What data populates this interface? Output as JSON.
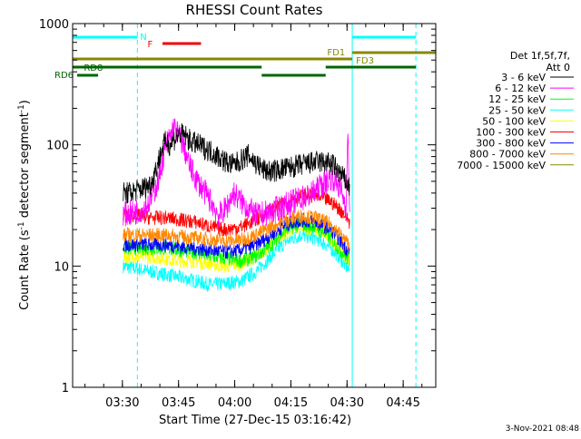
{
  "chart_data": {
    "type": "line",
    "title": "RHESSI Count Rates",
    "xlabel": "Start Time (27-Dec-15 03:16:42)",
    "ylabel_parts": [
      "Count Rate (s",
      "-1",
      " detector segment",
      "-1",
      ")"
    ],
    "x_unit": "minutes after 03:16:42",
    "xlim": [
      0,
      97
    ],
    "ylim": [
      1,
      1000
    ],
    "yscale": "log",
    "x_ticks": [
      {
        "x": 13.3,
        "label": "03:30"
      },
      {
        "x": 28.3,
        "label": "03:45"
      },
      {
        "x": 43.3,
        "label": "04:00"
      },
      {
        "x": 58.3,
        "label": "04:15"
      },
      {
        "x": 73.3,
        "label": "04:30"
      },
      {
        "x": 88.3,
        "label": "04:45"
      }
    ],
    "y_ticks": [
      {
        "y": 1,
        "label": "1"
      },
      {
        "y": 10,
        "label": "10"
      },
      {
        "y": 100,
        "label": "100"
      },
      {
        "y": 1000,
        "label": "1000"
      }
    ],
    "legend": {
      "header": [
        "Det 1f,5f,7f,",
        "Att 0"
      ],
      "placement": "right"
    },
    "series": [
      {
        "name": "3 - 6 keV",
        "color": "#000000",
        "x": [
          13.5,
          15,
          17,
          19,
          21,
          22,
          23,
          24,
          25,
          26,
          27,
          28,
          29,
          30,
          31,
          32,
          33,
          35,
          37,
          39,
          41,
          43,
          45,
          47,
          49,
          51,
          53,
          55,
          57,
          59,
          61,
          63,
          65,
          67,
          69,
          70,
          71,
          72,
          73,
          73.5,
          74
        ],
        "y": [
          40,
          40,
          42,
          44,
          48,
          60,
          75,
          95,
          108,
          100,
          110,
          118,
          122,
          120,
          110,
          105,
          102,
          95,
          88,
          80,
          72,
          68,
          75,
          82,
          70,
          62,
          60,
          62,
          64,
          66,
          68,
          70,
          72,
          72,
          70,
          66,
          60,
          55,
          50,
          46,
          45
        ]
      },
      {
        "name": "6 - 12 keV",
        "color": "#ff00ff",
        "x": [
          13.5,
          15,
          17,
          19,
          21,
          23,
          24,
          25,
          26,
          27,
          28,
          29,
          30,
          31,
          32,
          33,
          35,
          37,
          39,
          41,
          43,
          45,
          47,
          49,
          51,
          53,
          55,
          57,
          59,
          61,
          63,
          65,
          67,
          69,
          70,
          71,
          72,
          73,
          73.5,
          74
        ],
        "y": [
          27,
          27,
          28,
          30,
          36,
          52,
          75,
          100,
          115,
          140,
          125,
          110,
          90,
          70,
          60,
          52,
          42,
          34,
          26,
          30,
          40,
          34,
          30,
          26,
          27,
          28,
          30,
          32,
          34,
          36,
          38,
          42,
          48,
          54,
          52,
          46,
          40,
          30,
          120,
          30
        ]
      },
      {
        "name": "12 - 25 keV",
        "color": "#00ff00",
        "x": [
          13.5,
          17,
          21,
          25,
          29,
          33,
          37,
          41,
          45,
          49,
          53,
          57,
          61,
          65,
          69,
          71,
          73,
          74
        ],
        "y": [
          14,
          14,
          14,
          14,
          13.5,
          13,
          12,
          11.5,
          11,
          12,
          15,
          20,
          22,
          21,
          17,
          14,
          12,
          11
        ]
      },
      {
        "name": "25 - 50 keV",
        "color": "#00ffff",
        "x": [
          13.5,
          17,
          21,
          25,
          29,
          33,
          37,
          41,
          45,
          49,
          53,
          57,
          61,
          65,
          69,
          71,
          73,
          74
        ],
        "y": [
          10,
          9.5,
          9,
          8.5,
          8,
          7.5,
          7,
          7.2,
          7.5,
          9,
          12,
          16,
          18,
          17,
          14,
          12,
          10,
          9
        ]
      },
      {
        "name": "50 - 100 keV",
        "color": "#ffff00",
        "x": [
          13.5,
          17,
          21,
          25,
          29,
          33,
          37,
          41,
          45,
          49,
          53,
          57,
          61,
          65,
          69,
          71,
          73,
          74
        ],
        "y": [
          12,
          12,
          12,
          11.5,
          11,
          11,
          10.5,
          10,
          10.5,
          12,
          15,
          19,
          21,
          20,
          17,
          14,
          12,
          11
        ]
      },
      {
        "name": "100 - 300 keV",
        "color": "#ff0000",
        "x": [
          13.5,
          17,
          21,
          25,
          29,
          33,
          37,
          41,
          45,
          49,
          53,
          57,
          61,
          65,
          69,
          71,
          73,
          74
        ],
        "y": [
          26,
          26,
          25,
          25,
          24,
          23,
          21,
          20,
          21,
          24,
          29,
          34,
          38,
          38,
          34,
          30,
          26,
          23
        ]
      },
      {
        "name": "300 - 800 keV",
        "color": "#0000ff",
        "x": [
          13.5,
          17,
          21,
          25,
          29,
          33,
          37,
          41,
          45,
          49,
          53,
          57,
          61,
          65,
          69,
          71,
          73,
          74
        ],
        "y": [
          15,
          15,
          15,
          15,
          14.5,
          14,
          13.5,
          13,
          13.5,
          15,
          18,
          22,
          24,
          23,
          20,
          17,
          14,
          13
        ]
      },
      {
        "name": "800 - 7000 keV",
        "color": "#ff8800",
        "x": [
          13.5,
          17,
          21,
          25,
          29,
          33,
          37,
          41,
          45,
          49,
          53,
          57,
          61,
          65,
          69,
          71,
          73,
          74
        ],
        "y": [
          18,
          18,
          18,
          18,
          17.5,
          17,
          16.5,
          16,
          16.5,
          18,
          21,
          24,
          26,
          25,
          22,
          19,
          16,
          15
        ]
      },
      {
        "name": "7000 - 15000 keV",
        "color": "#888800",
        "x": [],
        "y": []
      }
    ],
    "flag_bars": [
      {
        "label": "N",
        "color": "#00ffff",
        "level": 4,
        "segments": [
          [
            0,
            17.3
          ]
        ],
        "label_x": 18
      },
      {
        "label": "",
        "color": "#00ffff",
        "level": 4,
        "segments": [
          [
            74.7,
            91.7
          ]
        ],
        "label_x": null
      },
      {
        "label": "F",
        "color": "#ee0000",
        "level": 3,
        "segments": [
          [
            24,
            34.3
          ]
        ],
        "label_x": 20
      },
      {
        "label": "FD1",
        "color": "#888800",
        "level": 2,
        "segments": [
          [
            0,
            74.7
          ]
        ],
        "label_x": 68
      },
      {
        "label": "FD3",
        "color": "#888800",
        "level": 1.5,
        "segments": [
          [
            74.7,
            97
          ]
        ],
        "label_x": 75.7
      },
      {
        "label": "RD8",
        "color": "#006600",
        "level": 1,
        "segments": [
          [
            0,
            50.5
          ],
          [
            67.6,
            91.7
          ]
        ],
        "label_x": 3
      },
      {
        "label": "RD6",
        "color": "#006600",
        "level": 0,
        "segments": [
          [
            1.2,
            6.8
          ],
          [
            50.5,
            67.6
          ]
        ],
        "label_x": -5
      }
    ],
    "vertical_markers": [
      {
        "x": 0,
        "color": "#00ffff",
        "style": "solid"
      },
      {
        "x": 17.3,
        "color": "#00ffff",
        "style": "dashed"
      },
      {
        "x": 74.7,
        "color": "#00ffff",
        "style": "solid"
      },
      {
        "x": 91.7,
        "color": "#00ffff",
        "style": "dashed"
      }
    ],
    "grid": false
  },
  "footer": {
    "timestamp": "3-Nov-2021 08:48"
  }
}
